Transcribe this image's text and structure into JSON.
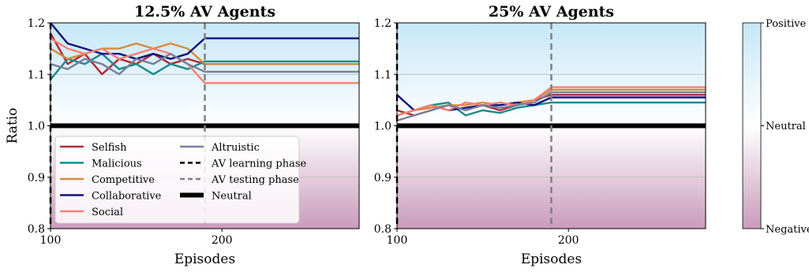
{
  "colors": {
    "Selfish": "#b22a35",
    "Malicious": "#1a8a8a",
    "Competitive": "#d98a3a",
    "Collaborative": "#11117e",
    "Social": "#fa8072",
    "Altruistic": "#77809a",
    "learning_line": "#000000",
    "testing_line": "#808080",
    "neutral_line": "#000000",
    "positive": "#c6e7f7",
    "negative": "#c99bbb"
  },
  "colorbar": {
    "labels": [
      "Positive",
      "Neutral",
      "Negative"
    ]
  },
  "legend": {
    "entries": [
      "Selfish",
      "Malicious",
      "Competitive",
      "Collaborative",
      "Social",
      "Altruistic",
      "AV learning phase",
      "AV testing phase",
      "Neutral"
    ]
  },
  "chart_data": [
    {
      "type": "line",
      "title": "12.5% AV Agents",
      "xlabel": "Episodes",
      "ylabel": "Ratio",
      "xlim": [
        100,
        280
      ],
      "ylim": [
        0.8,
        1.2
      ],
      "xticks": [
        100,
        200
      ],
      "yticks": [
        0.8,
        0.9,
        1.0,
        1.1,
        1.2
      ],
      "grid": "horizontal",
      "legend_position": "lower-left",
      "vlines": [
        {
          "x": 100,
          "label": "AV learning phase"
        },
        {
          "x": 190,
          "label": "AV testing phase"
        }
      ],
      "hline": {
        "y": 1.0,
        "label": "Neutral"
      },
      "series": [
        {
          "name": "Selfish",
          "x": [
            100,
            110,
            120,
            130,
            140,
            150,
            160,
            170,
            180,
            190,
            280
          ],
          "y": [
            1.18,
            1.12,
            1.14,
            1.1,
            1.13,
            1.12,
            1.14,
            1.12,
            1.13,
            1.12,
            1.12
          ]
        },
        {
          "name": "Malicious",
          "x": [
            100,
            110,
            120,
            130,
            140,
            150,
            160,
            170,
            180,
            190,
            280
          ],
          "y": [
            1.09,
            1.13,
            1.12,
            1.14,
            1.11,
            1.12,
            1.1,
            1.12,
            1.11,
            1.125,
            1.125
          ]
        },
        {
          "name": "Competitive",
          "x": [
            100,
            110,
            120,
            130,
            140,
            150,
            160,
            170,
            180,
            190,
            280
          ],
          "y": [
            1.15,
            1.13,
            1.14,
            1.15,
            1.15,
            1.16,
            1.15,
            1.16,
            1.15,
            1.12,
            1.12
          ]
        },
        {
          "name": "Collaborative",
          "x": [
            100,
            110,
            120,
            130,
            140,
            150,
            160,
            170,
            180,
            190,
            280
          ],
          "y": [
            1.2,
            1.16,
            1.15,
            1.14,
            1.14,
            1.13,
            1.14,
            1.13,
            1.14,
            1.17,
            1.17
          ]
        },
        {
          "name": "Social",
          "x": [
            100,
            110,
            120,
            130,
            140,
            150,
            160,
            170,
            180,
            190,
            280
          ],
          "y": [
            1.17,
            1.15,
            1.14,
            1.15,
            1.13,
            1.14,
            1.15,
            1.14,
            1.12,
            1.083,
            1.083
          ]
        },
        {
          "name": "Altruistic",
          "x": [
            100,
            110,
            120,
            130,
            140,
            150,
            160,
            170,
            180,
            190,
            280
          ],
          "y": [
            1.12,
            1.11,
            1.13,
            1.12,
            1.1,
            1.13,
            1.12,
            1.14,
            1.12,
            1.105,
            1.105
          ]
        }
      ]
    },
    {
      "type": "line",
      "title": "25% AV Agents",
      "xlabel": "Episodes",
      "ylabel": "",
      "xlim": [
        100,
        280
      ],
      "ylim": [
        0.8,
        1.2
      ],
      "xticks": [
        100,
        200
      ],
      "yticks": [
        0.8,
        0.9,
        1.0,
        1.1,
        1.2
      ],
      "grid": "horizontal",
      "vlines": [
        {
          "x": 100,
          "label": "AV learning phase"
        },
        {
          "x": 190,
          "label": "AV testing phase"
        }
      ],
      "hline": {
        "y": 1.0,
        "label": "Neutral"
      },
      "series": [
        {
          "name": "Selfish",
          "x": [
            100,
            110,
            120,
            130,
            140,
            150,
            160,
            170,
            180,
            190,
            280
          ],
          "y": [
            1.03,
            1.02,
            1.03,
            1.04,
            1.03,
            1.04,
            1.03,
            1.04,
            1.05,
            1.06,
            1.06
          ]
        },
        {
          "name": "Malicious",
          "x": [
            100,
            110,
            120,
            130,
            140,
            150,
            160,
            170,
            180,
            190,
            280
          ],
          "y": [
            1.02,
            1.03,
            1.04,
            1.045,
            1.02,
            1.03,
            1.025,
            1.035,
            1.04,
            1.045,
            1.045
          ]
        },
        {
          "name": "Competitive",
          "x": [
            100,
            110,
            120,
            130,
            140,
            150,
            160,
            170,
            180,
            190,
            280
          ],
          "y": [
            1.02,
            1.03,
            1.035,
            1.04,
            1.04,
            1.045,
            1.04,
            1.045,
            1.05,
            1.07,
            1.07
          ]
        },
        {
          "name": "Collaborative",
          "x": [
            100,
            110,
            120,
            130,
            140,
            150,
            160,
            170,
            180,
            190,
            280
          ],
          "y": [
            1.06,
            1.03,
            1.04,
            1.03,
            1.035,
            1.04,
            1.04,
            1.045,
            1.04,
            1.055,
            1.055
          ]
        },
        {
          "name": "Social",
          "x": [
            100,
            110,
            120,
            130,
            140,
            150,
            160,
            170,
            180,
            190,
            280
          ],
          "y": [
            1.02,
            1.03,
            1.04,
            1.03,
            1.045,
            1.04,
            1.045,
            1.04,
            1.05,
            1.075,
            1.075
          ]
        },
        {
          "name": "Altruistic",
          "x": [
            100,
            110,
            120,
            130,
            140,
            150,
            160,
            170,
            180,
            190,
            280
          ],
          "y": [
            1.01,
            1.02,
            1.03,
            1.04,
            1.03,
            1.04,
            1.035,
            1.04,
            1.045,
            1.065,
            1.065
          ]
        }
      ]
    }
  ]
}
